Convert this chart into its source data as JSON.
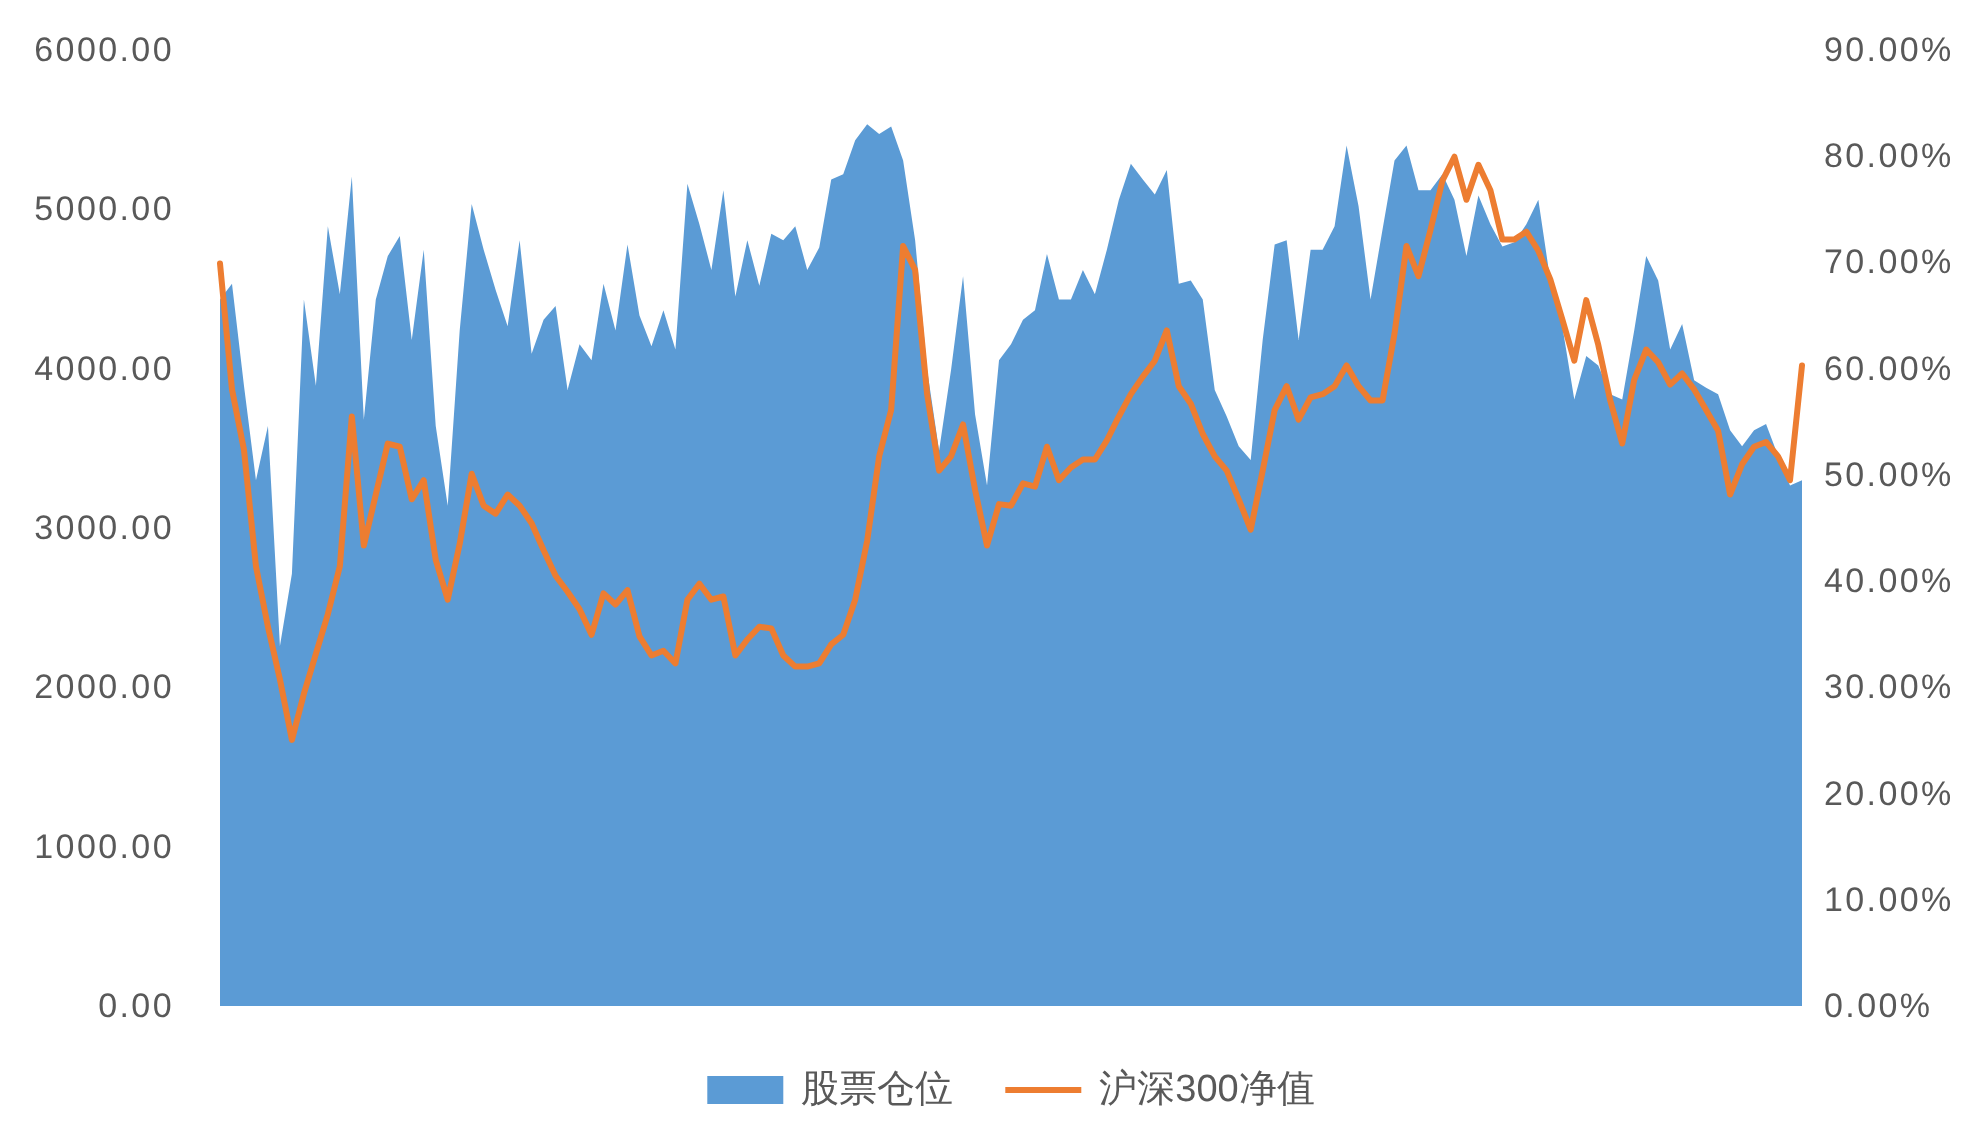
{
  "chart_data": {
    "type": "area",
    "categories": [
      null,
      null,
      null,
      null,
      null,
      null,
      null,
      null,
      null,
      null,
      null,
      null,
      null,
      null,
      null,
      null,
      null,
      null,
      null,
      null,
      null,
      null,
      null,
      null,
      null,
      null,
      null,
      null,
      null,
      null,
      null,
      null,
      null,
      null,
      null,
      null,
      null,
      null,
      null,
      null,
      null,
      null,
      null,
      null,
      null,
      null,
      null,
      null,
      null,
      null,
      null,
      null,
      null,
      null,
      null,
      null,
      null,
      null,
      null,
      null,
      null,
      null,
      null,
      null,
      null,
      null,
      null,
      null,
      null,
      null,
      null,
      null,
      null,
      null,
      null,
      null,
      null,
      null,
      null,
      null,
      null,
      null,
      null,
      null,
      null,
      null,
      null,
      null,
      null,
      null,
      null,
      null,
      null,
      null,
      null,
      null,
      null,
      null,
      null,
      null,
      null,
      null,
      null,
      null,
      null,
      null,
      null,
      null,
      null,
      null,
      null,
      null,
      null,
      null,
      null,
      null,
      null,
      null,
      null,
      null,
      null,
      null,
      null,
      null,
      null,
      null,
      null,
      null,
      null,
      null,
      null,
      null,
      null
    ],
    "series": [
      {
        "name": "股票仓位",
        "axis": "y2",
        "color": "#5b9bd5",
        "values": [
          66.5,
          68.0,
          58.4,
          49.5,
          54.6,
          33.9,
          40.7,
          66.5,
          58.4,
          73.4,
          67.0,
          78.1,
          55.2,
          66.5,
          70.6,
          72.5,
          62.7,
          71.2,
          54.6,
          47.1,
          63.6,
          75.5,
          71.2,
          67.4,
          64.0,
          72.1,
          61.4,
          64.6,
          65.9,
          58.0,
          62.3,
          60.8,
          68.0,
          63.6,
          71.7,
          65.0,
          62.1,
          65.5,
          61.8,
          77.4,
          73.6,
          69.3,
          76.8,
          66.8,
          72.1,
          67.8,
          72.7,
          72.1,
          73.4,
          69.3,
          71.4,
          77.8,
          78.3,
          81.5,
          83.0,
          82.1,
          82.8,
          79.6,
          72.1,
          59.9,
          52.3,
          59.9,
          68.7,
          55.7,
          49.0,
          60.8,
          62.3,
          64.6,
          65.5,
          70.8,
          66.5,
          66.5,
          69.3,
          67.0,
          71.2,
          75.9,
          79.3,
          77.8,
          76.4,
          78.7,
          68.0,
          68.3,
          66.5,
          58.0,
          55.5,
          52.7,
          51.4,
          62.7,
          71.7,
          72.1,
          62.7,
          71.2,
          71.2,
          73.4,
          81.0,
          75.3,
          66.5,
          73.1,
          79.6,
          81.0,
          76.8,
          76.8,
          78.3,
          75.9,
          70.6,
          76.3,
          73.6,
          71.5,
          71.9,
          73.6,
          75.9,
          68.3,
          64.0,
          57.1,
          61.2,
          60.3,
          57.6,
          57.1,
          63.6,
          70.6,
          68.3,
          61.8,
          64.2,
          58.9,
          58.2,
          57.6,
          54.2,
          52.7,
          54.2,
          54.8,
          51.8,
          49.0,
          49.5
        ]
      },
      {
        "name": "沪深300净值",
        "type": "line",
        "color": "#ed7d31",
        "values": [
          4660,
          3870,
          3490,
          2760,
          2380,
          2050,
          1670,
          1960,
          2210,
          2460,
          2760,
          3700,
          2890,
          3210,
          3530,
          3510,
          3180,
          3300,
          2800,
          2550,
          2900,
          3340,
          3140,
          3090,
          3210,
          3140,
          3030,
          2860,
          2700,
          2600,
          2490,
          2330,
          2590,
          2520,
          2610,
          2320,
          2200,
          2230,
          2150,
          2550,
          2650,
          2550,
          2570,
          2200,
          2300,
          2380,
          2370,
          2200,
          2130,
          2130,
          2150,
          2270,
          2330,
          2550,
          2920,
          3450,
          3740,
          4770,
          4620,
          3840,
          3360,
          3450,
          3650,
          3240,
          2890,
          3150,
          3140,
          3280,
          3260,
          3510,
          3300,
          3380,
          3430,
          3430,
          3550,
          3700,
          3840,
          3950,
          4050,
          4240,
          3890,
          3780,
          3590,
          3450,
          3360,
          3180,
          2990,
          3360,
          3740,
          3890,
          3680,
          3820,
          3840,
          3890,
          4020,
          3890,
          3800,
          3800,
          4220,
          4770,
          4580,
          4870,
          5180,
          5330,
          5060,
          5280,
          5120,
          4810,
          4810,
          4860,
          4740,
          4560,
          4310,
          4050,
          4430,
          4150,
          3800,
          3530,
          3930,
          4120,
          4040,
          3900,
          3970,
          3870,
          3740,
          3610,
          3210,
          3400,
          3510,
          3540,
          3450,
          3300,
          4020
        ]
      }
    ],
    "ylim": [
      0,
      6000
    ],
    "yticks": [
      {
        "value": 0,
        "label": "0.00"
      },
      {
        "value": 1000,
        "label": "1000.00"
      },
      {
        "value": 2000,
        "label": "2000.00"
      },
      {
        "value": 3000,
        "label": "3000.00"
      },
      {
        "value": 4000,
        "label": "4000.00"
      },
      {
        "value": 5000,
        "label": "5000.00"
      },
      {
        "value": 6000,
        "label": "6000.00"
      }
    ],
    "y2lim": [
      0,
      90
    ],
    "y2ticks": [
      {
        "value": 0,
        "label": "0.00%"
      },
      {
        "value": 10,
        "label": "10.00%"
      },
      {
        "value": 20,
        "label": "20.00%"
      },
      {
        "value": 30,
        "label": "30.00%"
      },
      {
        "value": 40,
        "label": "40.00%"
      },
      {
        "value": 50,
        "label": "50.00%"
      },
      {
        "value": 60,
        "label": "60.00%"
      },
      {
        "value": 70,
        "label": "70.00%"
      },
      {
        "value": 80,
        "label": "80.00%"
      },
      {
        "value": 90,
        "label": "90.00%"
      }
    ],
    "legend": "bottom"
  }
}
